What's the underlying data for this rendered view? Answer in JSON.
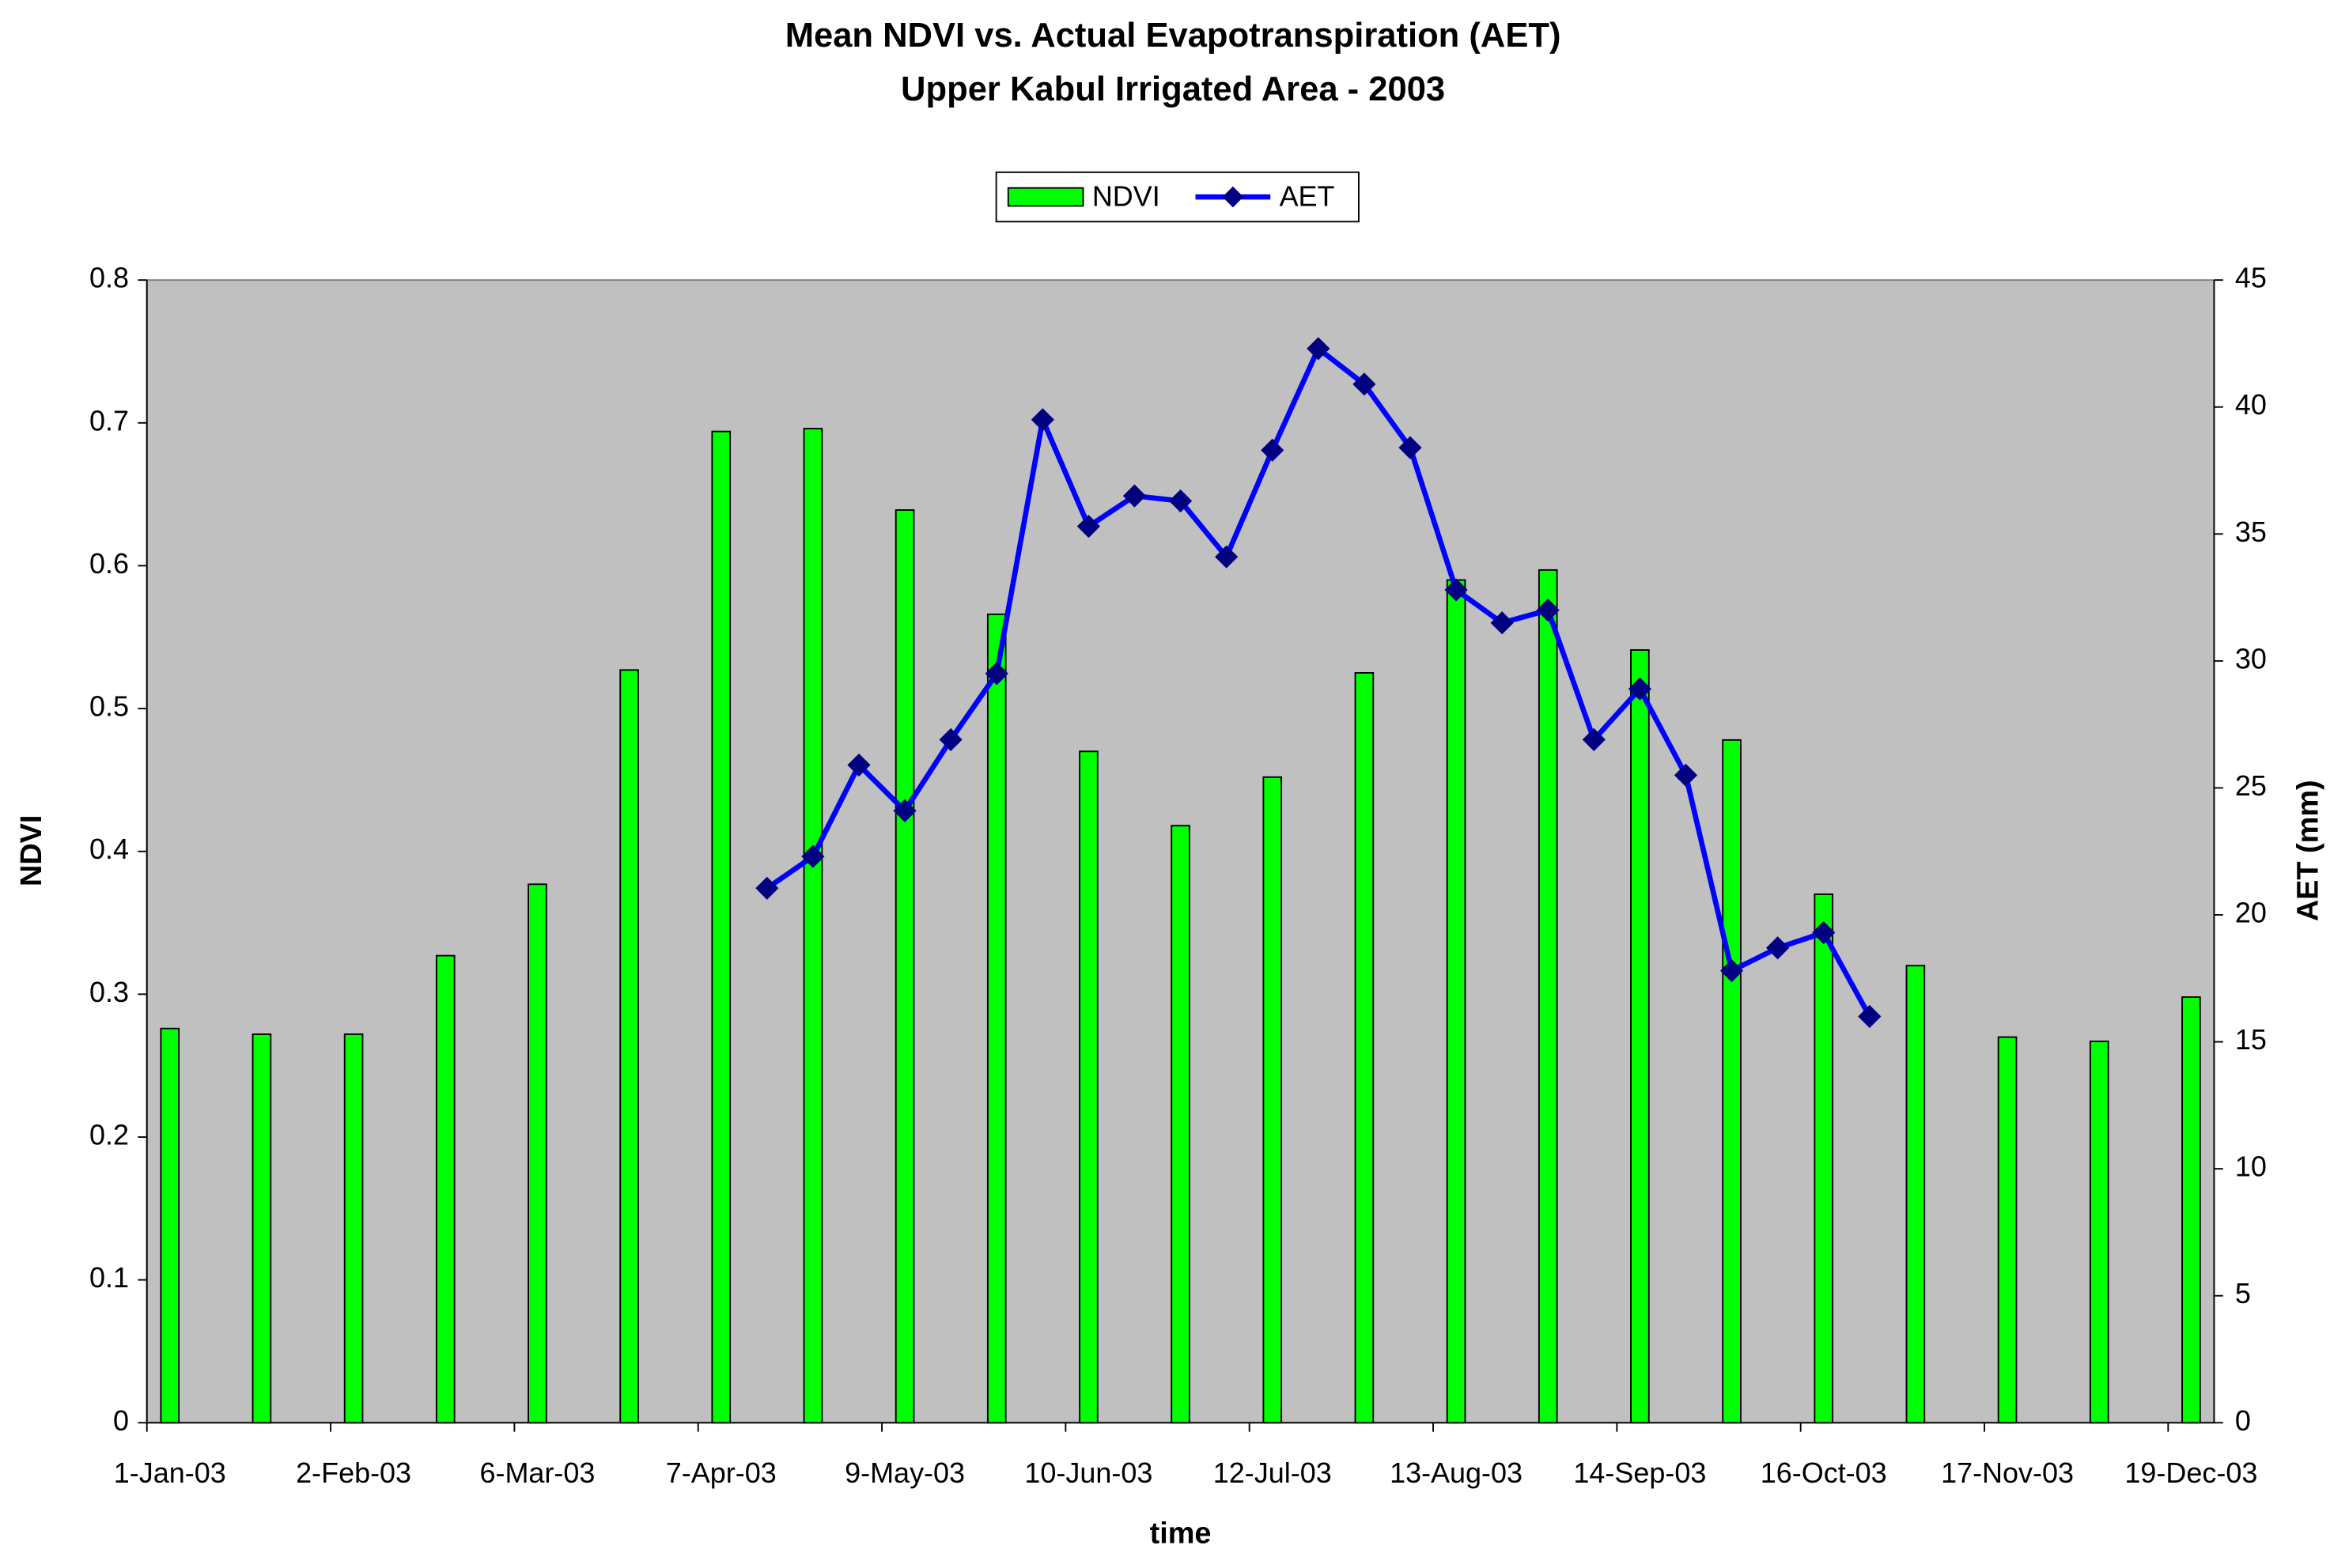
{
  "chart_data": {
    "type": "combo",
    "title": "Mean NDVI vs. Actual Evapotranspiration (AET)",
    "subtitle": "Upper Kabul Irrigated Area - 2003",
    "x_label": "time",
    "y_label": "NDVI",
    "y2_label": "AET (mm)",
    "categories": [
      "1-Jan-03",
      null,
      null,
      null,
      "2-Feb-03",
      null,
      null,
      null,
      "6-Mar-03",
      null,
      null,
      null,
      "7-Apr-03",
      null,
      null,
      null,
      "9-May-03",
      null,
      null,
      null,
      "10-Jun-03",
      null,
      null,
      null,
      "12-Jul-03",
      null,
      null,
      null,
      "13-Aug-03",
      null,
      null,
      null,
      "14-Sep-03",
      null,
      null,
      null,
      "16-Oct-03",
      null,
      null,
      null,
      "17-Nov-03",
      null,
      null,
      null,
      "19-Dec-03"
    ],
    "series": [
      {
        "name": "NDVI",
        "type": "bar",
        "color": "#00ff00",
        "values": [
          0.276,
          null,
          0.272,
          null,
          0.272,
          null,
          0.327,
          null,
          0.377,
          null,
          0.527,
          null,
          0.694,
          null,
          0.696,
          null,
          0.639,
          null,
          0.566,
          null,
          0.47,
          null,
          0.418,
          null,
          0.452,
          null,
          0.525,
          null,
          0.59,
          null,
          0.597,
          null,
          0.541,
          null,
          0.478,
          null,
          0.37,
          null,
          0.32,
          null,
          0.27,
          null,
          0.267,
          null,
          0.298
        ]
      },
      {
        "name": "AET",
        "type": "line",
        "axis": "y2",
        "color": "#0000ff",
        "marker_color": "#000080",
        "values": [
          null,
          null,
          null,
          null,
          null,
          null,
          null,
          null,
          null,
          null,
          null,
          null,
          null,
          21.05,
          22.3,
          25.9,
          24.1,
          26.9,
          29.5,
          39.5,
          35.3,
          36.5,
          36.3,
          34.1,
          38.3,
          42.3,
          40.9,
          38.4,
          32.8,
          31.5,
          32.0,
          26.9,
          28.9,
          25.5,
          17.8,
          18.7,
          19.3,
          16.0,
          null,
          null,
          null,
          null,
          null,
          null,
          null
        ]
      }
    ],
    "ylim": [
      0,
      0.8
    ],
    "yticks": [
      0,
      0.1,
      0.2,
      0.3,
      0.4,
      0.5,
      0.6,
      0.7,
      0.8
    ],
    "y2lim": [
      0,
      45
    ],
    "y2ticks": [
      0,
      5,
      10,
      15,
      20,
      25,
      30,
      35,
      40,
      45
    ],
    "plot_background": "#c0c0c0",
    "legend": "top"
  }
}
